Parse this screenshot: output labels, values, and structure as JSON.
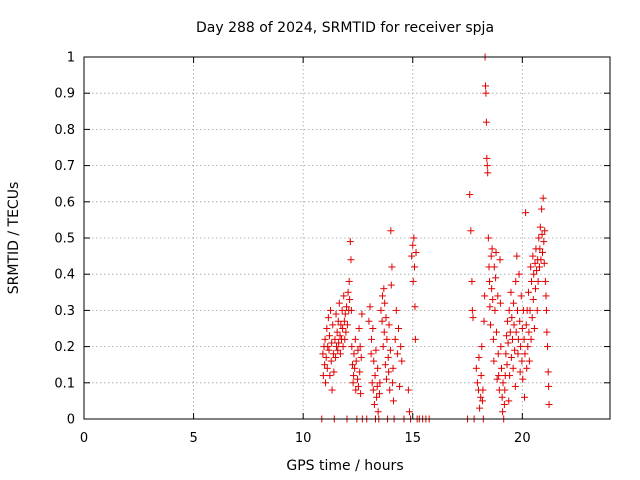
{
  "chart_data": {
    "type": "scatter",
    "title": "Day 288 of 2024, SRMTID for receiver spja",
    "xlabel": "GPS time / hours",
    "ylabel": "SRMTID / TECUs",
    "xlim": [
      0,
      24
    ],
    "ylim": [
      0,
      1
    ],
    "x_ticks": [
      0,
      5,
      10,
      15,
      20
    ],
    "x_tick_labels": [
      "0",
      "5",
      "10",
      "15",
      "20"
    ],
    "y_ticks": [
      0,
      0.1,
      0.2,
      0.3,
      0.4,
      0.5,
      0.6,
      0.7,
      0.8,
      0.9,
      1
    ],
    "y_tick_labels": [
      "0",
      "0.1",
      "0.2",
      "0.3",
      "0.4",
      "0.5",
      "0.6",
      "0.7",
      "0.8",
      "0.9",
      "1"
    ],
    "grid": true,
    "marker": "+",
    "color": "#e00000",
    "series": [
      {
        "name": "SRMTID",
        "points": [
          [
            10.85,
            0.0
          ],
          [
            10.9,
            0.18
          ],
          [
            10.92,
            0.12
          ],
          [
            10.95,
            0.2
          ],
          [
            10.98,
            0.15
          ],
          [
            11.0,
            0.22
          ],
          [
            11.02,
            0.1
          ],
          [
            11.05,
            0.17
          ],
          [
            11.08,
            0.25
          ],
          [
            11.1,
            0.14
          ],
          [
            11.12,
            0.2
          ],
          [
            11.15,
            0.28
          ],
          [
            11.18,
            0.19
          ],
          [
            11.2,
            0.23
          ],
          [
            11.22,
            0.12
          ],
          [
            11.25,
            0.3
          ],
          [
            11.28,
            0.16
          ],
          [
            11.3,
            0.21
          ],
          [
            11.32,
            0.08
          ],
          [
            11.35,
            0.26
          ],
          [
            11.38,
            0.18
          ],
          [
            11.4,
            0.13
          ],
          [
            11.42,
            0.0
          ],
          [
            11.45,
            0.22
          ],
          [
            11.48,
            0.17
          ],
          [
            11.5,
            0.29
          ],
          [
            11.52,
            0.2
          ],
          [
            11.55,
            0.24
          ],
          [
            11.58,
            0.19
          ],
          [
            11.6,
            0.27
          ],
          [
            11.62,
            0.21
          ],
          [
            11.65,
            0.32
          ],
          [
            11.68,
            0.23
          ],
          [
            11.7,
            0.18
          ],
          [
            11.72,
            0.26
          ],
          [
            11.75,
            0.22
          ],
          [
            11.78,
            0.3
          ],
          [
            11.8,
            0.25
          ],
          [
            11.82,
            0.2
          ],
          [
            11.85,
            0.34
          ],
          [
            11.88,
            0.27
          ],
          [
            11.9,
            0.22
          ],
          [
            11.92,
            0.29
          ],
          [
            11.95,
            0.24
          ],
          [
            11.98,
            0.31
          ],
          [
            12.0,
            0.0
          ],
          [
            12.02,
            0.26
          ],
          [
            12.05,
            0.35
          ],
          [
            12.08,
            0.3
          ],
          [
            12.1,
            0.38
          ],
          [
            12.12,
            0.33
          ],
          [
            12.15,
            0.49
          ],
          [
            12.18,
            0.44
          ],
          [
            12.2,
            0.3
          ],
          [
            12.22,
            0.2
          ],
          [
            12.25,
            0.15
          ],
          [
            12.28,
            0.1
          ],
          [
            12.3,
            0.12
          ],
          [
            12.32,
            0.18
          ],
          [
            12.35,
            0.14
          ],
          [
            12.38,
            0.22
          ],
          [
            12.4,
            0.08
          ],
          [
            12.42,
            0.16
          ],
          [
            12.45,
            0.0
          ],
          [
            12.48,
            0.11
          ],
          [
            12.5,
            0.19
          ],
          [
            12.52,
            0.09
          ],
          [
            12.55,
            0.25
          ],
          [
            12.58,
            0.13
          ],
          [
            12.6,
            0.2
          ],
          [
            12.62,
            0.07
          ],
          [
            12.65,
            0.17
          ],
          [
            12.68,
            0.29
          ],
          [
            12.7,
            0.0
          ],
          [
            12.9,
            0.0
          ],
          [
            13.0,
            0.27
          ],
          [
            13.05,
            0.31
          ],
          [
            13.1,
            0.18
          ],
          [
            13.12,
            0.22
          ],
          [
            13.15,
            0.1
          ],
          [
            13.18,
            0.25
          ],
          [
            13.2,
            0.08
          ],
          [
            13.22,
            0.16
          ],
          [
            13.25,
            0.04
          ],
          [
            13.28,
            0.12
          ],
          [
            13.3,
            0.0
          ],
          [
            13.32,
            0.19
          ],
          [
            13.35,
            0.06
          ],
          [
            13.38,
            0.09
          ],
          [
            13.4,
            0.14
          ],
          [
            13.42,
            0.02
          ],
          [
            13.45,
            0.0
          ],
          [
            13.48,
            0.07
          ],
          [
            13.5,
            0.1
          ],
          [
            13.55,
            0.3
          ],
          [
            13.6,
            0.27
          ],
          [
            13.62,
            0.34
          ],
          [
            13.65,
            0.2
          ],
          [
            13.68,
            0.36
          ],
          [
            13.7,
            0.24
          ],
          [
            13.72,
            0.32
          ],
          [
            13.75,
            0.15
          ],
          [
            13.78,
            0.28
          ],
          [
            13.8,
            0.11
          ],
          [
            13.82,
            0.22
          ],
          [
            13.85,
            0.0
          ],
          [
            13.88,
            0.17
          ],
          [
            13.9,
            0.13
          ],
          [
            13.92,
            0.26
          ],
          [
            13.95,
            0.08
          ],
          [
            13.98,
            0.19
          ],
          [
            14.0,
            0.52
          ],
          [
            14.02,
            0.37
          ],
          [
            14.05,
            0.42
          ],
          [
            14.08,
            0.1
          ],
          [
            14.1,
            0.14
          ],
          [
            14.12,
            0.05
          ],
          [
            14.15,
            0.0
          ],
          [
            14.2,
            0.22
          ],
          [
            14.25,
            0.3
          ],
          [
            14.3,
            0.18
          ],
          [
            14.35,
            0.25
          ],
          [
            14.4,
            0.09
          ],
          [
            14.45,
            0.2
          ],
          [
            14.5,
            0.16
          ],
          [
            14.6,
            0.0
          ],
          [
            14.8,
            0.08
          ],
          [
            14.85,
            0.02
          ],
          [
            14.9,
            0.0
          ],
          [
            14.95,
            0.45
          ],
          [
            15.0,
            0.48
          ],
          [
            15.02,
            0.38
          ],
          [
            15.05,
            0.5
          ],
          [
            15.08,
            0.42
          ],
          [
            15.1,
            0.31
          ],
          [
            15.12,
            0.22
          ],
          [
            15.15,
            0.46
          ],
          [
            15.2,
            0.0
          ],
          [
            15.3,
            0.0
          ],
          [
            15.45,
            0.0
          ],
          [
            15.6,
            0.0
          ],
          [
            15.75,
            0.0
          ],
          [
            17.5,
            0.0
          ],
          [
            17.6,
            0.62
          ],
          [
            17.65,
            0.52
          ],
          [
            17.7,
            0.38
          ],
          [
            17.72,
            0.3
          ],
          [
            17.75,
            0.28
          ],
          [
            17.8,
            0.0
          ],
          [
            17.9,
            0.14
          ],
          [
            17.95,
            0.1
          ],
          [
            18.0,
            0.08
          ],
          [
            18.02,
            0.17
          ],
          [
            18.05,
            0.03
          ],
          [
            18.1,
            0.06
          ],
          [
            18.12,
            0.12
          ],
          [
            18.15,
            0.2
          ],
          [
            18.18,
            0.05
          ],
          [
            18.2,
            0.08
          ],
          [
            18.22,
            0.0
          ],
          [
            18.25,
            0.27
          ],
          [
            18.28,
            0.34
          ],
          [
            18.3,
            1.0
          ],
          [
            18.32,
            0.92
          ],
          [
            18.34,
            0.9
          ],
          [
            18.36,
            0.82
          ],
          [
            18.38,
            0.72
          ],
          [
            18.4,
            0.7
          ],
          [
            18.42,
            0.68
          ],
          [
            18.45,
            0.5
          ],
          [
            18.48,
            0.42
          ],
          [
            18.5,
            0.38
          ],
          [
            18.52,
            0.31
          ],
          [
            18.55,
            0.26
          ],
          [
            18.58,
            0.45
          ],
          [
            18.6,
            0.36
          ],
          [
            18.62,
            0.47
          ],
          [
            18.65,
            0.33
          ],
          [
            18.68,
            0.22
          ],
          [
            18.7,
            0.16
          ],
          [
            18.72,
            0.42
          ],
          [
            18.75,
            0.3
          ],
          [
            18.78,
            0.39
          ],
          [
            18.8,
            0.46
          ],
          [
            18.82,
            0.24
          ],
          [
            18.85,
            0.11
          ],
          [
            18.88,
            0.34
          ],
          [
            18.9,
            0.18
          ],
          [
            18.92,
            0.12
          ],
          [
            18.95,
            0.08
          ],
          [
            18.98,
            0.44
          ],
          [
            19.0,
            0.32
          ],
          [
            19.02,
            0.2
          ],
          [
            19.05,
            0.14
          ],
          [
            19.08,
            0.06
          ],
          [
            19.1,
            0.02
          ],
          [
            19.12,
            0.1
          ],
          [
            19.15,
            0.0
          ],
          [
            19.18,
            0.04
          ],
          [
            19.2,
            0.08
          ],
          [
            19.22,
            0.12
          ],
          [
            19.25,
            0.18
          ],
          [
            19.28,
            0.23
          ],
          [
            19.3,
            0.15
          ],
          [
            19.32,
            0.27
          ],
          [
            19.35,
            0.21
          ],
          [
            19.38,
            0.05
          ],
          [
            19.4,
            0.3
          ],
          [
            19.42,
            0.12
          ],
          [
            19.45,
            0.24
          ],
          [
            19.48,
            0.35
          ],
          [
            19.5,
            0.17
          ],
          [
            19.52,
            0.28
          ],
          [
            19.55,
            0.22
          ],
          [
            19.58,
            0.14
          ],
          [
            19.6,
            0.32
          ],
          [
            19.62,
            0.26
          ],
          [
            19.65,
            0.19
          ],
          [
            19.68,
            0.09
          ],
          [
            19.7,
            0.38
          ],
          [
            19.72,
            0.24
          ],
          [
            19.75,
            0.45
          ],
          [
            19.78,
            0.3
          ],
          [
            19.8,
            0.18
          ],
          [
            19.82,
            0.22
          ],
          [
            19.85,
            0.4
          ],
          [
            19.88,
            0.27
          ],
          [
            19.9,
            0.13
          ],
          [
            19.92,
            0.2
          ],
          [
            19.95,
            0.34
          ],
          [
            19.98,
            0.16
          ],
          [
            20.0,
            0.25
          ],
          [
            20.02,
            0.11
          ],
          [
            20.05,
            0.3
          ],
          [
            20.08,
            0.22
          ],
          [
            20.1,
            0.06
          ],
          [
            20.12,
            0.18
          ],
          [
            20.15,
            0.57
          ],
          [
            20.18,
            0.26
          ],
          [
            20.2,
            0.14
          ],
          [
            20.22,
            0.3
          ],
          [
            20.25,
            0.2
          ],
          [
            20.28,
            0.35
          ],
          [
            20.3,
            0.24
          ],
          [
            20.32,
            0.16
          ],
          [
            20.35,
            0.3
          ],
          [
            20.38,
            0.42
          ],
          [
            20.4,
            0.22
          ],
          [
            20.42,
            0.38
          ],
          [
            20.45,
            0.28
          ],
          [
            20.48,
            0.45
          ],
          [
            20.5,
            0.33
          ],
          [
            20.52,
            0.4
          ],
          [
            20.55,
            0.25
          ],
          [
            20.58,
            0.43
          ],
          [
            20.6,
            0.36
          ],
          [
            20.62,
            0.47
          ],
          [
            20.65,
            0.41
          ],
          [
            20.68,
            0.3
          ],
          [
            20.7,
            0.44
          ],
          [
            20.72,
            0.38
          ],
          [
            20.75,
            0.5
          ],
          [
            20.78,
            0.42
          ],
          [
            20.8,
            0.47
          ],
          [
            20.82,
            0.53
          ],
          [
            20.85,
            0.44
          ],
          [
            20.88,
            0.58
          ],
          [
            20.9,
            0.51
          ],
          [
            20.92,
            0.46
          ],
          [
            20.95,
            0.61
          ],
          [
            20.98,
            0.49
          ],
          [
            21.0,
            0.43
          ],
          [
            21.02,
            0.52
          ],
          [
            21.05,
            0.38
          ],
          [
            21.08,
            0.34
          ],
          [
            21.1,
            0.3
          ],
          [
            21.12,
            0.24
          ],
          [
            21.15,
            0.2
          ],
          [
            21.18,
            0.13
          ],
          [
            21.2,
            0.09
          ],
          [
            21.22,
            0.04
          ]
        ]
      }
    ]
  }
}
